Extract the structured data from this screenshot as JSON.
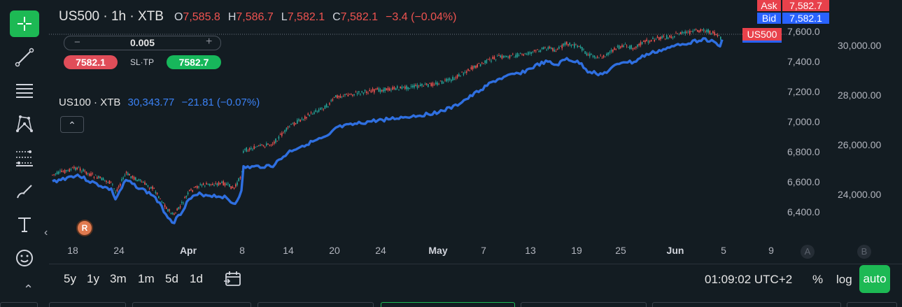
{
  "toolbar": {
    "tools": [
      {
        "name": "crosshair-icon",
        "active": true
      },
      {
        "name": "trend-line-icon"
      },
      {
        "name": "horizontal-lines-icon"
      },
      {
        "name": "pattern-icon"
      },
      {
        "name": "fib-retracement-icon"
      },
      {
        "name": "brush-icon"
      },
      {
        "name": "text-icon"
      },
      {
        "name": "emoji-icon"
      }
    ],
    "collapse_glyph": "‹",
    "expand_glyph": "⌃"
  },
  "header": {
    "symbol": "US500 · 1h · XTB",
    "o_label": "O",
    "o_value": "7,585.8",
    "h_label": "H",
    "h_value": "7,586.7",
    "l_label": "L",
    "l_value": "7,582.1",
    "c_label": "C",
    "c_value": "7,582.1",
    "change": "−3.4 (−0.04%)"
  },
  "trade_panel": {
    "minus": "−",
    "plus": "+",
    "lot": "0.005",
    "sell_price": "7582.1",
    "sltp_label": "SL·TP",
    "buy_price": "7582.7"
  },
  "compare": {
    "symbol": "US100 · XTB",
    "value": "30,343.77",
    "change": "−21.81 (−0.07%)",
    "collapse_glyph": "⌃"
  },
  "badge_letter": "R",
  "price_tags": {
    "ask_label": "Ask",
    "ask_value": "7,582.7",
    "bid_label": "Bid",
    "bid_value": "7,582.1",
    "symbol_label": "US500"
  },
  "y_axis_left": [
    "7,600.0",
    "7,400.0",
    "7,200.0",
    "7,000.0",
    "6,800.0",
    "6,600.0",
    "6,400.0"
  ],
  "y_axis_right": [
    "30,000.00",
    "28,000.00",
    "26,000.00",
    "24,000.00"
  ],
  "x_axis": [
    {
      "label": "18",
      "bold": false
    },
    {
      "label": "24",
      "bold": false
    },
    {
      "label": "Apr",
      "bold": true
    },
    {
      "label": "8",
      "bold": false
    },
    {
      "label": "14",
      "bold": false
    },
    {
      "label": "20",
      "bold": false
    },
    {
      "label": "24",
      "bold": false
    },
    {
      "label": "May",
      "bold": true
    },
    {
      "label": "7",
      "bold": false
    },
    {
      "label": "13",
      "bold": false
    },
    {
      "label": "19",
      "bold": false
    },
    {
      "label": "25",
      "bold": false
    },
    {
      "label": "Jun",
      "bold": true
    },
    {
      "label": "5",
      "bold": false
    },
    {
      "label": "9",
      "bold": false
    }
  ],
  "axis_markers": {
    "a": "A",
    "b": "B"
  },
  "bottom": {
    "ranges": [
      "5y",
      "1y",
      "3m",
      "1m",
      "5d",
      "1d"
    ],
    "time": "01:09:02 UTC+2",
    "percent": "%",
    "log": "log",
    "auto": "auto"
  },
  "colors": {
    "background": "#131c22",
    "up": "#26a69a",
    "down": "#ef5350",
    "compare_line": "#2f6fe0",
    "accent": "#1db954",
    "ask": "#e8414b",
    "bid": "#2962ff"
  }
}
